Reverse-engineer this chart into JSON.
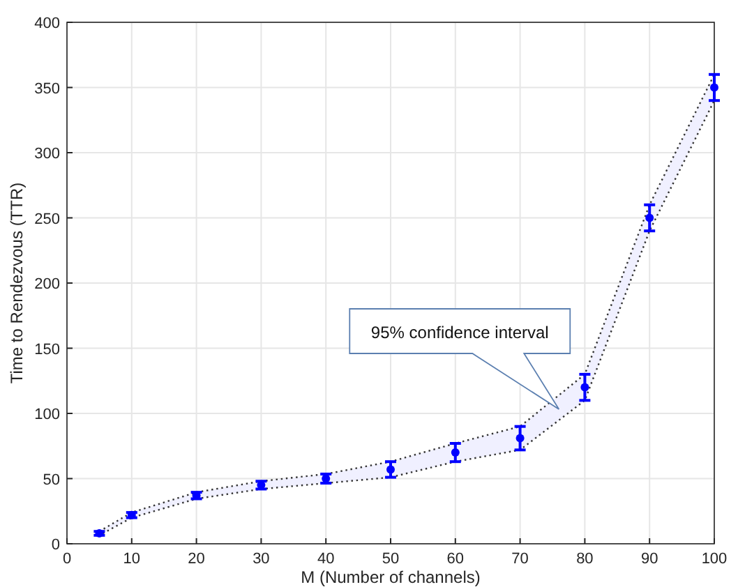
{
  "chart_data": {
    "type": "scatter",
    "xlabel": "M (Number of channels)",
    "ylabel": "Time to Rendezvous (TTR)",
    "x": [
      5,
      10,
      20,
      30,
      40,
      50,
      60,
      70,
      80,
      90,
      100
    ],
    "series": [
      {
        "color": "#0000ff",
        "values": [
          8,
          22,
          37,
          45,
          50,
          57,
          70,
          81,
          120,
          250,
          350
        ],
        "errors": [
          1.5,
          2,
          2.5,
          3,
          3.5,
          6,
          7,
          9,
          10,
          10,
          10
        ],
        "lower": [
          6.5,
          20,
          34.5,
          42,
          46.5,
          51,
          63,
          72,
          110,
          240,
          340
        ],
        "upper": [
          9.5,
          24,
          39.5,
          48,
          53.5,
          63,
          77,
          90,
          130,
          260,
          360
        ]
      }
    ],
    "xlim": [
      0,
      100
    ],
    "xticks": [
      0,
      10,
      20,
      30,
      40,
      50,
      60,
      70,
      80,
      90,
      100
    ],
    "ylim": [
      0,
      400
    ],
    "yticks": [
      0,
      50,
      100,
      150,
      200,
      250,
      300,
      350,
      400
    ],
    "grid": true,
    "marker": "circle",
    "line_style": "dotted",
    "annotations": [
      "95% confidence interval"
    ]
  }
}
